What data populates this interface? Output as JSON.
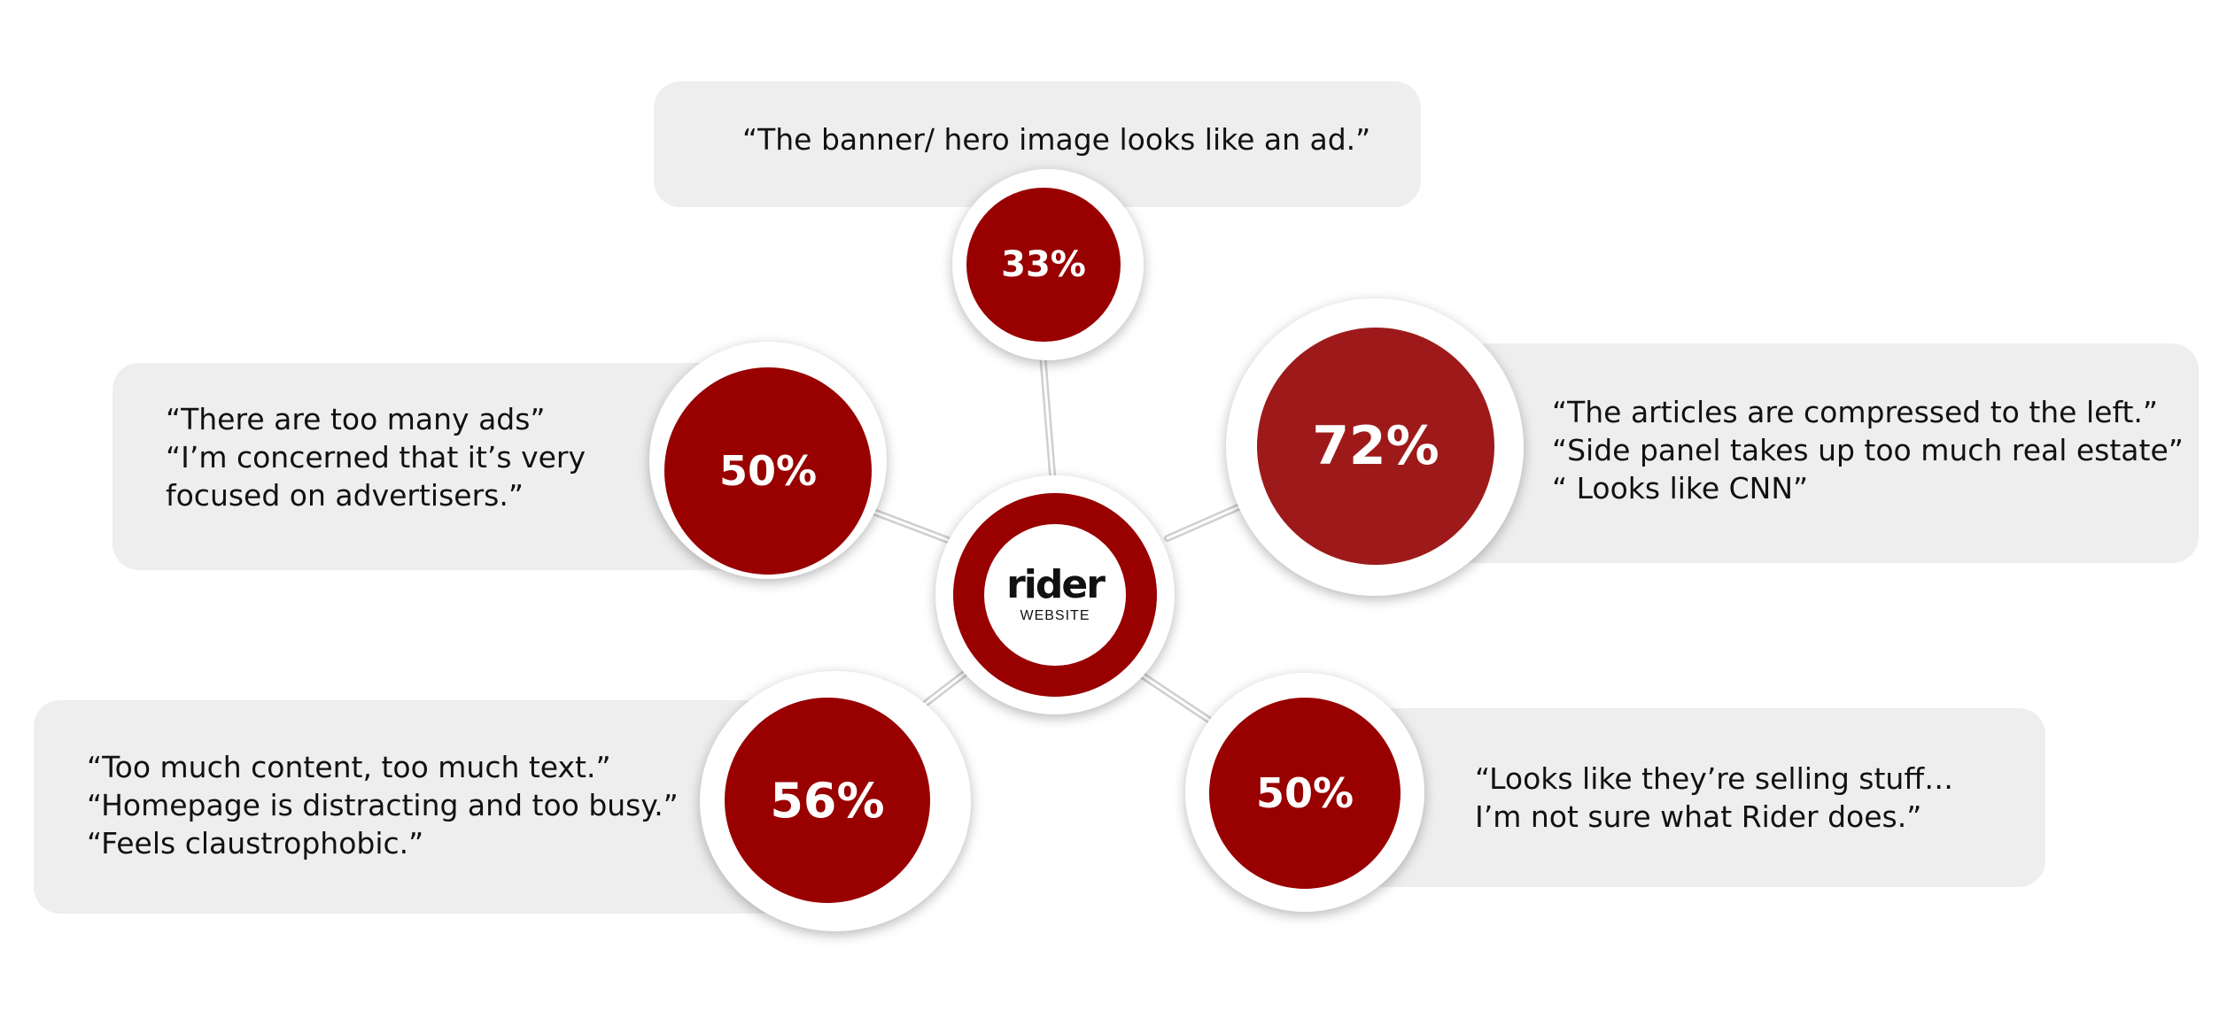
{
  "colors": {
    "accent": "#990000",
    "accent_light": "#9e1a1a",
    "bubble": "#eeeeee"
  },
  "hub": {
    "logo": "rider",
    "subtitle": "WEBSITE"
  },
  "findings": [
    {
      "id": "top",
      "percent": "33%",
      "quotes": [
        "“The banner/ hero image looks like an ad.”"
      ]
    },
    {
      "id": "left",
      "percent": "50%",
      "quotes": [
        "“There are too many ads”",
        "“I’m concerned that it’s very",
        "focused on advertisers.”"
      ]
    },
    {
      "id": "right",
      "percent": "72%",
      "quotes": [
        "“The articles are compressed to the left.”",
        "“Side panel takes up too much real estate”",
        "“ Looks like CNN”"
      ]
    },
    {
      "id": "bottom-left",
      "percent": "56%",
      "quotes": [
        "“Too much content, too much text.”",
        "“Homepage is distracting and too busy.”",
        "“Feels claustrophobic.”"
      ]
    },
    {
      "id": "bottom-right",
      "percent": "50%",
      "quotes": [
        "“Looks like they’re selling stuff…",
        "I’m not sure what Rider does.”"
      ]
    }
  ]
}
